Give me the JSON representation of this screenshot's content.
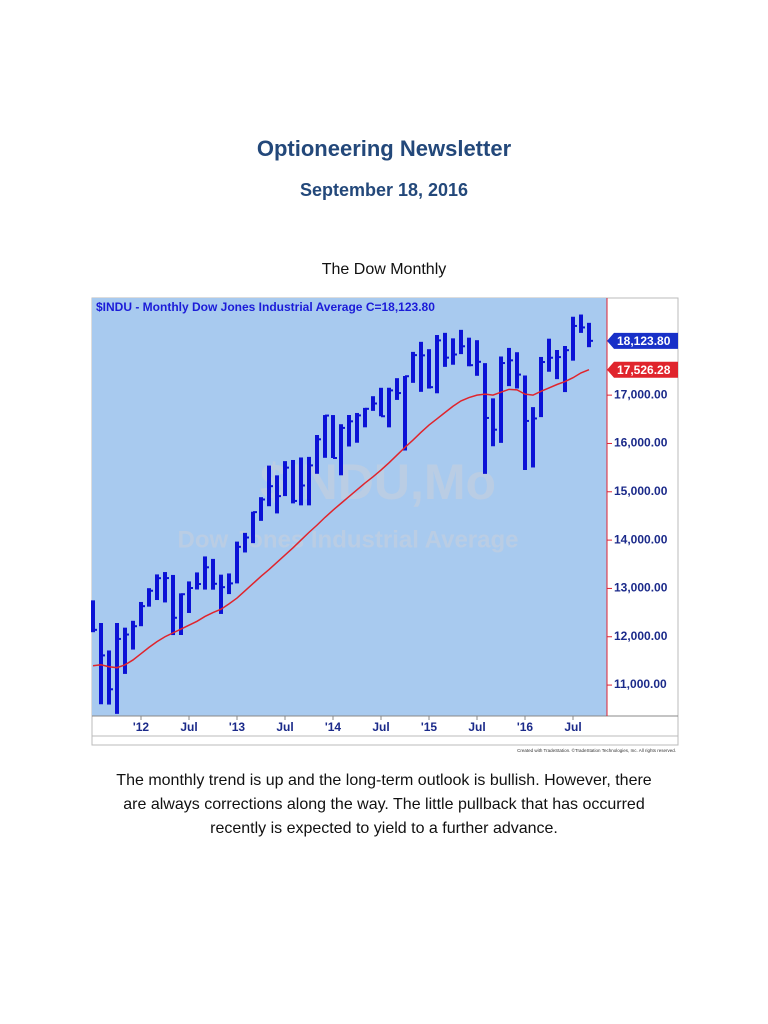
{
  "header": {
    "title": "Optioneering Newsletter",
    "date": "September 18, 2016"
  },
  "caption": "The Dow Monthly",
  "chart_data": {
    "type": "ohlc",
    "title": "$INDU - Monthly  Dow Jones Industrial Average  C=18,123.80",
    "watermark": [
      "$INDU,Mo",
      "Dow Jones Industrial Average"
    ],
    "credit": "Created with TradeStation. ©TradeStation Technologies, Inc. All rights reserved.",
    "categories": [
      null,
      null,
      null,
      null,
      null,
      null,
      "'12",
      null,
      null,
      null,
      null,
      null,
      "Jul",
      null,
      null,
      null,
      null,
      null,
      "'13",
      null,
      null,
      null,
      null,
      null,
      "Jul",
      null,
      null,
      null,
      null,
      null,
      "'14",
      null,
      null,
      null,
      null,
      null,
      "Jul",
      null,
      null,
      null,
      null,
      null,
      "'15",
      null,
      null,
      null,
      null,
      null,
      "Jul",
      null,
      null,
      null,
      null,
      null,
      "'16",
      null,
      null,
      null,
      null,
      null,
      "Jul",
      null,
      null
    ],
    "high": [
      12753,
      12284,
      11716,
      12284,
      12188,
      12330,
      12720,
      13005,
      13290,
      13339,
      13279,
      12898,
      13145,
      13331,
      13662,
      13611,
      13285,
      13310,
      13969,
      14150,
      14587,
      14888,
      15542,
      15340,
      15634,
      15658,
      15710,
      15722,
      16175,
      16588,
      16588,
      16398,
      16589,
      16631,
      16736,
      16978,
      17152,
      17153,
      17351,
      17395,
      17895,
      18103,
      17951,
      18244,
      18289,
      18175,
      18351,
      18189,
      18137,
      17663,
      16933,
      17799,
      17977,
      17888,
      17405,
      16752,
      17790,
      18168,
      17934,
      18017,
      18622,
      18668,
      18496
    ],
    "low": [
      12094,
      10604,
      10597,
      10404,
      11231,
      11735,
      12218,
      12623,
      12760,
      12710,
      12035,
      12036,
      12492,
      12978,
      12976,
      12974,
      12472,
      12883,
      13104,
      13744,
      13937,
      14398,
      14701,
      14552,
      14911,
      14760,
      14719,
      14719,
      15372,
      15703,
      15699,
      15341,
      15937,
      16015,
      16334,
      16674,
      16563,
      16333,
      16901,
      15855,
      17254,
      17068,
      17136,
      17038,
      17585,
      17629,
      17849,
      17597,
      17400,
      15370,
      15942,
      16013,
      17186,
      17138,
      15451,
      15503,
      16545,
      17484,
      17331,
      17063,
      17713,
      18288,
      17992
    ],
    "close": [
      12143,
      11614,
      10913,
      11955,
      12046,
      12218,
      12633,
      12952,
      13212,
      13214,
      12393,
      12880,
      13009,
      13091,
      13437,
      13096,
      13026,
      13104,
      13861,
      14054,
      14579,
      14840,
      15116,
      14910,
      15500,
      14810,
      15130,
      15546,
      16086,
      16577,
      15699,
      16322,
      16458,
      16581,
      16717,
      16827,
      16563,
      17098,
      17043,
      17391,
      17828,
      17823,
      17165,
      18133,
      17776,
      17841,
      18011,
      17620,
      17690,
      16528,
      16285,
      17664,
      17720,
      17425,
      16466,
      16517,
      17685,
      17774,
      17787,
      17930,
      18432,
      18401,
      18123.8
    ],
    "close_value_labels": [
      null,
      null,
      null,
      null,
      null,
      null,
      null,
      null,
      null,
      null,
      null,
      null,
      null,
      null,
      null,
      null,
      null,
      null,
      null,
      null,
      null,
      null,
      null,
      null,
      null,
      null,
      null,
      null,
      null,
      null,
      null,
      null,
      null,
      null,
      null,
      null,
      null,
      null,
      null,
      null,
      null,
      null,
      null,
      null,
      null,
      null,
      null,
      null,
      null,
      null,
      null,
      null,
      null,
      null,
      null,
      null,
      null,
      null,
      null,
      null,
      null,
      null,
      "18,123.80"
    ],
    "ma": [
      11400,
      11420,
      11380,
      11360,
      11420,
      11520,
      11650,
      11780,
      11900,
      12000,
      12080,
      12160,
      12240,
      12320,
      12420,
      12500,
      12570,
      12680,
      12800,
      12950,
      13100,
      13250,
      13390,
      13540,
      13690,
      13840,
      14000,
      14160,
      14310,
      14470,
      14620,
      14760,
      14900,
      15040,
      15180,
      15310,
      15450,
      15600,
      15760,
      15920,
      16070,
      16230,
      16380,
      16510,
      16640,
      16770,
      16880,
      16950,
      17000,
      17020,
      17000,
      17060,
      17120,
      17110,
      17020,
      17000,
      17080,
      17150,
      17220,
      17280,
      17360,
      17460,
      17526.28
    ],
    "ma_value_labels": [
      null,
      null,
      null,
      null,
      null,
      null,
      null,
      null,
      null,
      null,
      null,
      null,
      null,
      null,
      null,
      null,
      null,
      null,
      null,
      null,
      null,
      null,
      null,
      null,
      null,
      null,
      null,
      null,
      null,
      null,
      null,
      null,
      null,
      null,
      null,
      null,
      null,
      null,
      null,
      null,
      null,
      null,
      null,
      null,
      null,
      null,
      null,
      null,
      null,
      null,
      null,
      null,
      null,
      null,
      null,
      null,
      null,
      null,
      null,
      null,
      null,
      null,
      "17,526.28"
    ],
    "color": "#0b12d6",
    "ma_color": "#e0242c",
    "background": "#a8caef",
    "ylim": [
      10360,
      19010
    ],
    "yticks": [
      {
        "value": 11000,
        "label": "11,000.00"
      },
      {
        "value": 12000,
        "label": "12,000.00"
      },
      {
        "value": 13000,
        "label": "13,000.00"
      },
      {
        "value": 14000,
        "label": "14,000.00"
      },
      {
        "value": 15000,
        "label": "15,000.00"
      },
      {
        "value": 16000,
        "label": "16,000.00"
      },
      {
        "value": 17000,
        "label": "17,000.00"
      }
    ]
  },
  "body": "The monthly trend is up and the long-term outlook is bullish. However, there are always corrections along the way. The little pullback that has occurred recently is expected to yield to a further advance."
}
